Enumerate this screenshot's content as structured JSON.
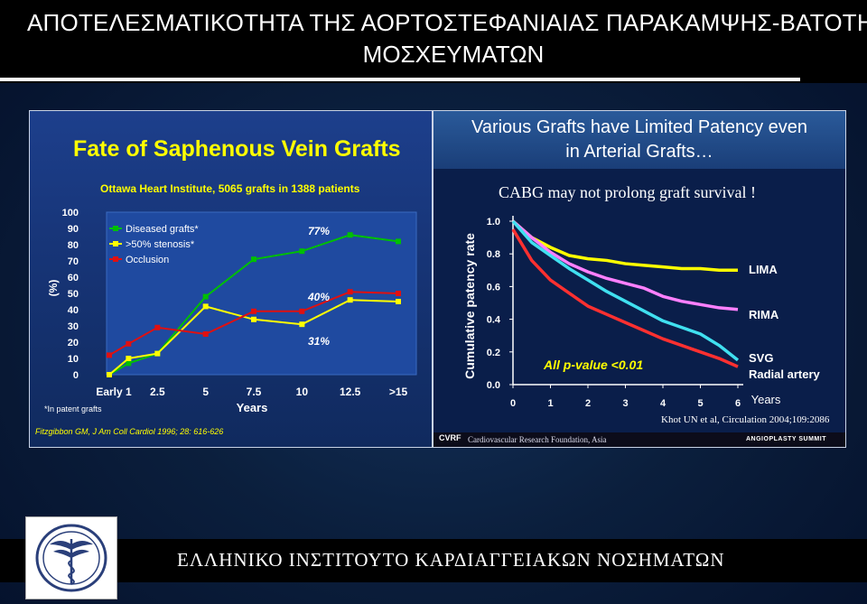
{
  "slide": {
    "title_line1": "ΑΠΟΤΕΛΕΣΜΑΤΙΚΟΤΗΤΑ ΤΗΣ ΑΟΡΤΟΣΤΕΦΑΝΙΑΙΑΣ ΠΑΡΑΚΑΜΨΗΣ-ΒΑΤΟΤΗΤΑ",
    "title_line2": "ΜΟΣΧΕΥΜΑΤΩΝ",
    "footer": "ΕΛΛΗΝΙΚΟ ΙΝΣΤΙΤΟΥΤΟ ΚΑΡΔΙΑΓΓΕΙΑΚΩΝ ΝΟΣΗΜΑΤΩΝ",
    "logo_icon": "caduceus-logo-icon",
    "colors": {
      "title_bg": "#000000",
      "panel_left": "#1d3f8c",
      "accent_yellow": "#ffff00"
    }
  },
  "chart_data": [
    {
      "type": "line",
      "title": "Fate of Saphenous Vein Grafts",
      "subtitle": "Ottawa Heart Institute, 5065 grafts in 1388 patients",
      "xlabel": "Years",
      "ylabel": "(%)",
      "categories": [
        "Early",
        "1",
        "2.5",
        "5",
        "7.5",
        "10",
        "12.5",
        ">15"
      ],
      "x_positions": [
        0,
        1,
        2.5,
        5,
        7.5,
        10,
        12.5,
        15
      ],
      "yticks": [
        "0",
        "10",
        "20",
        "30",
        "40",
        "50",
        "60",
        "70",
        "80",
        "90",
        "100"
      ],
      "ylim": [
        0,
        100
      ],
      "grid": false,
      "legend_position": "top-left",
      "series": [
        {
          "name": "Diseased grafts*",
          "color": "#00c000",
          "values": [
            0,
            7,
            13,
            48,
            71,
            76,
            86,
            82
          ]
        },
        {
          "name": ">50% stenosis*",
          "color": "#ffff00",
          "values": [
            0,
            10,
            13,
            42,
            34,
            31,
            46,
            45
          ]
        },
        {
          "name": "Occlusion",
          "color": "#e01010",
          "values": [
            12,
            19,
            29,
            25,
            39,
            39,
            51,
            50
          ]
        }
      ],
      "annotations": [
        "77%",
        "40%",
        "31%"
      ],
      "footnote": "*In patent grafts",
      "citation": "Fitzgibbon GM, J Am Coll Cardiol 1996; 28: 616-626"
    },
    {
      "type": "line",
      "title": "Various Grafts have Limited Patency even in Arterial Grafts…",
      "subtitle": "CABG may not prolong graft survival !",
      "xlabel": "Years",
      "ylabel": "Cumulative patency rate",
      "x": [
        0,
        0.5,
        1,
        1.5,
        2,
        2.5,
        3,
        3.5,
        4,
        4.5,
        5,
        5.5,
        6
      ],
      "xticks": [
        "0",
        "1",
        "2",
        "3",
        "4",
        "5",
        "6"
      ],
      "yticks": [
        "0.0",
        "0.2",
        "0.4",
        "0.6",
        "0.8",
        "1.0"
      ],
      "xlim": [
        0,
        6
      ],
      "ylim": [
        0,
        1
      ],
      "series": [
        {
          "name": "LIMA",
          "color": "#ffff00",
          "values": [
            1.0,
            0.9,
            0.84,
            0.79,
            0.77,
            0.76,
            0.74,
            0.73,
            0.72,
            0.71,
            0.71,
            0.7,
            0.7
          ]
        },
        {
          "name": "RIMA",
          "color": "#ff80ff",
          "values": [
            1.0,
            0.9,
            0.81,
            0.74,
            0.69,
            0.65,
            0.62,
            0.59,
            0.54,
            0.51,
            0.49,
            0.47,
            0.46
          ]
        },
        {
          "name": "SVG",
          "color": "#40e0f0",
          "values": [
            1.0,
            0.87,
            0.79,
            0.71,
            0.64,
            0.57,
            0.51,
            0.45,
            0.39,
            0.35,
            0.31,
            0.24,
            0.15
          ]
        },
        {
          "name": "Radial artery",
          "color": "#ff3030",
          "values": [
            0.95,
            0.76,
            0.64,
            0.56,
            0.48,
            0.43,
            0.38,
            0.33,
            0.28,
            0.24,
            0.2,
            0.16,
            0.11
          ]
        }
      ],
      "annotation": "All p-value <0.01",
      "citation": "Khot UN et al, Circulation 2004;109:2086",
      "source": "Cardiovascular Research Foundation, Asia",
      "brand": "ANGIOPLASTY SUMMIT"
    }
  ]
}
